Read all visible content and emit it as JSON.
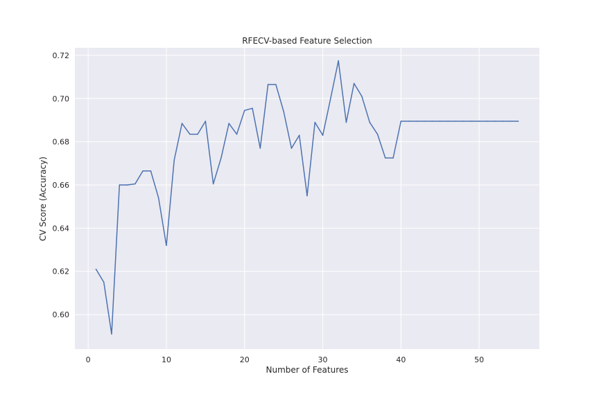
{
  "chart_data": {
    "type": "line",
    "title": "RFECV-based Feature Selection",
    "xlabel": "Number of Features",
    "ylabel": "CV Score (Accuracy)",
    "xlim": [
      -1.7,
      57.7
    ],
    "ylim": [
      0.584,
      0.7235
    ],
    "xticks": [
      0,
      10,
      20,
      30,
      40,
      50
    ],
    "yticks": [
      0.6,
      0.62,
      0.64,
      0.66,
      0.68,
      0.7,
      0.72
    ],
    "xtick_labels": [
      "0",
      "10",
      "20",
      "30",
      "40",
      "50"
    ],
    "ytick_labels": [
      "0.60",
      "0.62",
      "0.64",
      "0.66",
      "0.68",
      "0.70",
      "0.72"
    ],
    "grid": true,
    "colors": {
      "background": "#eaeaf2",
      "grid": "#ffffff",
      "line": "#4c72b0",
      "text": "#262626"
    },
    "series": [
      {
        "x": [
          1,
          2,
          3,
          4,
          5,
          6,
          7,
          8,
          9,
          10,
          11,
          12,
          13,
          14,
          15,
          16,
          17,
          18,
          19,
          20,
          21,
          22,
          23,
          24,
          25,
          26,
          27,
          28,
          29,
          30,
          31,
          32,
          33,
          34,
          35,
          36,
          37,
          38,
          39,
          40,
          41,
          42,
          43,
          44,
          45,
          46,
          47,
          48,
          49,
          50,
          51,
          52,
          53,
          54,
          55
        ],
        "y": [
          0.621,
          0.615,
          0.591,
          0.66,
          0.66,
          0.6605,
          0.6665,
          0.6665,
          0.654,
          0.632,
          0.6715,
          0.6885,
          0.6835,
          0.6835,
          0.6895,
          0.6605,
          0.6725,
          0.6885,
          0.6835,
          0.6945,
          0.6955,
          0.677,
          0.7065,
          0.7065,
          0.694,
          0.677,
          0.683,
          0.655,
          0.689,
          0.683,
          0.7,
          0.7175,
          0.689,
          0.707,
          0.701,
          0.689,
          0.6835,
          0.6725,
          0.6725,
          0.6895,
          0.6895,
          0.6895,
          0.6895,
          0.6895,
          0.6895,
          0.6895,
          0.6895,
          0.6895,
          0.6895,
          0.6895,
          0.6895,
          0.6895,
          0.6895,
          0.6895,
          0.6895
        ]
      }
    ]
  }
}
